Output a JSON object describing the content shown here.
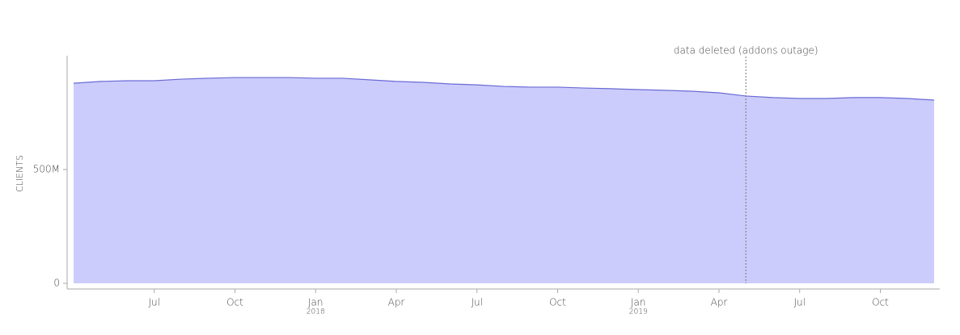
{
  "chart_data": {
    "type": "area",
    "ylabel": "CLIENTS",
    "x": [
      "2017-04",
      "2017-05",
      "2017-06",
      "2017-07",
      "2017-08",
      "2017-09",
      "2017-10",
      "2017-11",
      "2017-12",
      "2018-01",
      "2018-02",
      "2018-03",
      "2018-04",
      "2018-05",
      "2018-06",
      "2018-07",
      "2018-08",
      "2018-09",
      "2018-10",
      "2018-11",
      "2018-12",
      "2019-01",
      "2019-02",
      "2019-03",
      "2019-04",
      "2019-05",
      "2019-06",
      "2019-07",
      "2019-08",
      "2019-09",
      "2019-10",
      "2019-11",
      "2019-12"
    ],
    "values": [
      879000000,
      887000000,
      890000000,
      890000000,
      897000000,
      901000000,
      904000000,
      904000000,
      904000000,
      901000000,
      901000000,
      894000000,
      887000000,
      883000000,
      876000000,
      872000000,
      865000000,
      862000000,
      862000000,
      858000000,
      855000000,
      851000000,
      848000000,
      844000000,
      837000000,
      823000000,
      816000000,
      812000000,
      812000000,
      816000000,
      816000000,
      812000000,
      805000000
    ],
    "color": "#ccccfc",
    "line_color": "#6a6ad6",
    "xlim": [
      "2017-04",
      "2019-12"
    ],
    "xticks": [
      {
        "value": "2017-07",
        "label": "Jul"
      },
      {
        "value": "2017-10",
        "label": "Oct"
      },
      {
        "value": "2018-01",
        "label": "Jan",
        "sublabel": "2018"
      },
      {
        "value": "2018-04",
        "label": "Apr"
      },
      {
        "value": "2018-07",
        "label": "Jul"
      },
      {
        "value": "2018-10",
        "label": "Oct"
      },
      {
        "value": "2019-01",
        "label": "Jan",
        "sublabel": "2019"
      },
      {
        "value": "2019-04",
        "label": "Apr"
      },
      {
        "value": "2019-07",
        "label": "Jul"
      },
      {
        "value": "2019-10",
        "label": "Oct"
      }
    ],
    "ylim": [
      0,
      1000000000
    ],
    "yticks": [
      0,
      {
        "value": 500000000,
        "label": "500M"
      }
    ],
    "annotations": [
      {
        "x": "2019-05",
        "text": "data deleted (addons outage)"
      }
    ]
  }
}
